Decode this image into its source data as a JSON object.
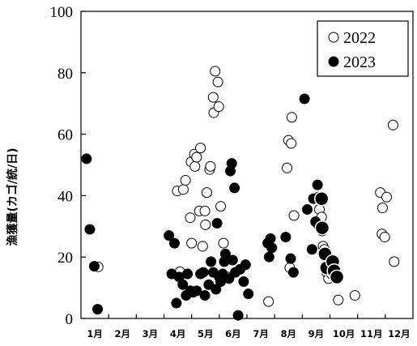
{
  "chart_data": {
    "type": "scatter",
    "ylabel": "漁獲量(カゴ/統/日)",
    "xlabel": "",
    "ylim": [
      0,
      100
    ],
    "yticks": [
      0,
      20,
      40,
      60,
      80,
      100
    ],
    "xlim": [
      0,
      12
    ],
    "categories": [
      "1月",
      "2月",
      "3月",
      "4月",
      "5月",
      "6月",
      "7月",
      "8月",
      "9月",
      "10月",
      "11月",
      "12月"
    ],
    "legend_position": "top-right",
    "series": [
      {
        "name": "2022",
        "marker": "open-circle",
        "points": [
          [
            0.62,
            16.8
          ],
          [
            3.48,
            41.5
          ],
          [
            3.58,
            15.2
          ],
          [
            3.7,
            42.0
          ],
          [
            3.78,
            45.0
          ],
          [
            3.95,
            32.8
          ],
          [
            3.98,
            51.0
          ],
          [
            4.0,
            24.5
          ],
          [
            4.1,
            53.5
          ],
          [
            4.12,
            49.5
          ],
          [
            4.18,
            52.5
          ],
          [
            4.28,
            35.0
          ],
          [
            4.32,
            55.5
          ],
          [
            4.4,
            23.5
          ],
          [
            4.48,
            35.0
          ],
          [
            4.5,
            30.5
          ],
          [
            4.55,
            41.0
          ],
          [
            4.65,
            48.5
          ],
          [
            4.68,
            49.5
          ],
          [
            4.85,
            80.5
          ],
          [
            4.95,
            77.0
          ],
          [
            4.78,
            72.0
          ],
          [
            4.8,
            67.0
          ],
          [
            4.98,
            69.0
          ],
          [
            5.05,
            36.5
          ],
          [
            5.15,
            24.5
          ],
          [
            5.3,
            13.5
          ],
          [
            6.78,
            5.5
          ],
          [
            7.45,
            49.0
          ],
          [
            7.5,
            58.0
          ],
          [
            7.55,
            16.5
          ],
          [
            7.6,
            57.0
          ],
          [
            7.62,
            65.5
          ],
          [
            7.7,
            33.5
          ],
          [
            8.58,
            39.5
          ],
          [
            8.62,
            35.5
          ],
          [
            8.7,
            33.0
          ],
          [
            8.72,
            28.5
          ],
          [
            8.75,
            23.5
          ],
          [
            8.8,
            22.5
          ],
          [
            8.82,
            17.0
          ],
          [
            8.88,
            15.0
          ],
          [
            8.95,
            13.0
          ],
          [
            9.05,
            14.5
          ],
          [
            9.15,
            16.5
          ],
          [
            9.25,
            13.0
          ],
          [
            9.3,
            6.0
          ],
          [
            9.9,
            7.5
          ],
          [
            10.82,
            41.0
          ],
          [
            10.9,
            36.0
          ],
          [
            10.88,
            27.5
          ],
          [
            10.98,
            26.5
          ],
          [
            11.05,
            39.5
          ],
          [
            11.28,
            63.0
          ],
          [
            11.32,
            18.5
          ]
        ]
      },
      {
        "name": "2023",
        "marker": "filled-circle",
        "points": [
          [
            0.2,
            52.0
          ],
          [
            0.32,
            29.0
          ],
          [
            0.48,
            17.0
          ],
          [
            0.6,
            3.0
          ],
          [
            3.18,
            27.0
          ],
          [
            3.28,
            14.5
          ],
          [
            3.38,
            24.5
          ],
          [
            3.45,
            5.0
          ],
          [
            3.55,
            13.5
          ],
          [
            3.68,
            11.0
          ],
          [
            3.8,
            7.5
          ],
          [
            3.85,
            14.5
          ],
          [
            3.95,
            9.0
          ],
          [
            4.05,
            8.5
          ],
          [
            4.18,
            9.0
          ],
          [
            4.32,
            14.5
          ],
          [
            4.42,
            15.0
          ],
          [
            4.48,
            7.5
          ],
          [
            4.62,
            11.0
          ],
          [
            4.7,
            18.5
          ],
          [
            4.78,
            15.0
          ],
          [
            4.88,
            9.5
          ],
          [
            4.92,
            31.0
          ],
          [
            5.0,
            13.5
          ],
          [
            5.05,
            12.0
          ],
          [
            5.12,
            14.5
          ],
          [
            5.18,
            18.5
          ],
          [
            5.22,
            21.0
          ],
          [
            5.35,
            13.0
          ],
          [
            5.4,
            48.0
          ],
          [
            5.45,
            50.5
          ],
          [
            5.48,
            19.0
          ],
          [
            5.55,
            42.5
          ],
          [
            5.58,
            15.0
          ],
          [
            5.68,
            1.0
          ],
          [
            5.75,
            16.0
          ],
          [
            5.88,
            12.0
          ],
          [
            5.95,
            17.5
          ],
          [
            6.05,
            8.0
          ],
          [
            6.75,
            24.5
          ],
          [
            6.8,
            20.0
          ],
          [
            6.85,
            26.0
          ],
          [
            6.9,
            23.0
          ],
          [
            7.4,
            26.5
          ],
          [
            7.58,
            19.5
          ],
          [
            7.68,
            15.0
          ],
          [
            8.08,
            71.5
          ],
          [
            8.18,
            35.5
          ],
          [
            8.35,
            22.5
          ],
          [
            8.4,
            39.0
          ],
          [
            8.48,
            31.5
          ],
          [
            8.55,
            43.5
          ],
          [
            8.58,
            30.5
          ]
        ],
        "large_points": [
          [
            8.7,
            39.0
          ],
          [
            8.72,
            29.5
          ],
          [
            8.82,
            21.0
          ],
          [
            8.88,
            16.5
          ],
          [
            9.1,
            18.5
          ],
          [
            9.15,
            15.5
          ],
          [
            9.25,
            13.5
          ]
        ]
      }
    ]
  }
}
